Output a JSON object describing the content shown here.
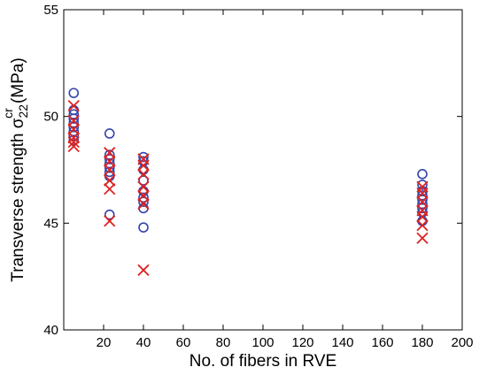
{
  "chart_data": {
    "type": "scatter",
    "title": "",
    "xlabel": "No. of fibers in RVE",
    "ylabel": {
      "prefix": "Transverse strength  ",
      "symbol": "σ",
      "sub": "22",
      "sup": "cr",
      "suffix": " (MPa)"
    },
    "xlim": [
      0,
      200
    ],
    "ylim": [
      40,
      55
    ],
    "xticks": [
      "20",
      "40",
      "60",
      "80",
      "100",
      "120",
      "140",
      "160",
      "180",
      "200"
    ],
    "yticks": [
      "40",
      "45",
      "50",
      "55"
    ],
    "grid": false,
    "legend": "none",
    "series": [
      {
        "marker": "circle",
        "color": "#3344aa",
        "points": [
          [
            5,
            51.1
          ],
          [
            5,
            50.3
          ],
          [
            5,
            50.1
          ],
          [
            5,
            49.9
          ],
          [
            5,
            49.7
          ],
          [
            5,
            49.5
          ],
          [
            5,
            49.3
          ],
          [
            5,
            49.1
          ],
          [
            5,
            48.9
          ],
          [
            23,
            49.2
          ],
          [
            23,
            48.2
          ],
          [
            23,
            48.0
          ],
          [
            23,
            47.8
          ],
          [
            23,
            47.6
          ],
          [
            23,
            47.4
          ],
          [
            23,
            47.2
          ],
          [
            23,
            45.4
          ],
          [
            40,
            48.1
          ],
          [
            40,
            47.9
          ],
          [
            40,
            47.5
          ],
          [
            40,
            47.0
          ],
          [
            40,
            46.5
          ],
          [
            40,
            46.2
          ],
          [
            40,
            46.0
          ],
          [
            40,
            45.7
          ],
          [
            40,
            44.8
          ],
          [
            180,
            47.3
          ],
          [
            180,
            46.8
          ],
          [
            180,
            46.5
          ],
          [
            180,
            46.3
          ],
          [
            180,
            46.1
          ],
          [
            180,
            45.9
          ],
          [
            180,
            45.7
          ],
          [
            180,
            45.5
          ],
          [
            180,
            45.1
          ]
        ]
      },
      {
        "marker": "x",
        "color": "#dd2222",
        "points": [
          [
            5,
            50.5
          ],
          [
            5,
            49.8
          ],
          [
            5,
            49.4
          ],
          [
            5,
            49.0
          ],
          [
            5,
            48.8
          ],
          [
            5,
            48.6
          ],
          [
            23,
            48.3
          ],
          [
            23,
            47.9
          ],
          [
            23,
            47.5
          ],
          [
            23,
            47.0
          ],
          [
            23,
            46.6
          ],
          [
            23,
            45.1
          ],
          [
            40,
            48.0
          ],
          [
            40,
            47.7
          ],
          [
            40,
            47.3
          ],
          [
            40,
            46.7
          ],
          [
            40,
            46.3
          ],
          [
            40,
            45.9
          ],
          [
            40,
            42.8
          ],
          [
            180,
            46.7
          ],
          [
            180,
            46.4
          ],
          [
            180,
            46.0
          ],
          [
            180,
            45.6
          ],
          [
            180,
            45.3
          ],
          [
            180,
            44.9
          ],
          [
            180,
            44.3
          ]
        ]
      }
    ]
  }
}
